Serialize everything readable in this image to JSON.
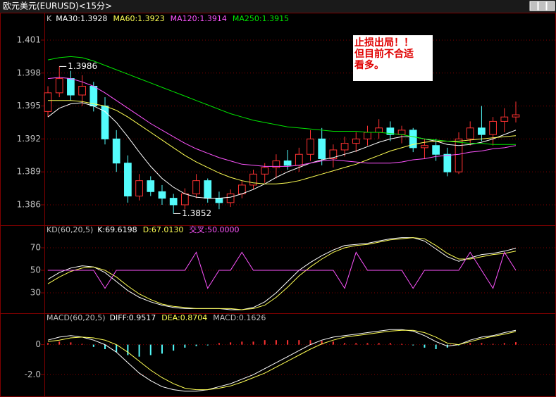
{
  "window_title": "欧元美元(EURUSD)<15分>",
  "chart_data": [
    {
      "type": "candlestick",
      "label": "K",
      "x": [
        0,
        1,
        2,
        3,
        4,
        5,
        6,
        7,
        8,
        9,
        10,
        11,
        12,
        13,
        14,
        15,
        16,
        17,
        18,
        19,
        20,
        21,
        22,
        23,
        24,
        25,
        26,
        27,
        28,
        29,
        30,
        31,
        32,
        33,
        34,
        35,
        36,
        37,
        38,
        39,
        40,
        41
      ],
      "xlim": [
        -0.31,
        44.52
      ],
      "open": [
        1.3945,
        1.3962,
        1.3975,
        1.396,
        1.3968,
        1.395,
        1.392,
        1.3898,
        1.3868,
        1.3882,
        1.3872,
        1.3866,
        1.386,
        1.387,
        1.3882,
        1.3866,
        1.3862,
        1.387,
        1.3878,
        1.3888,
        1.3894,
        1.39,
        1.3896,
        1.3906,
        1.392,
        1.3902,
        1.391,
        1.3916,
        1.392,
        1.3926,
        1.393,
        1.3924,
        1.3928,
        1.3912,
        1.3914,
        1.3906,
        1.389,
        1.392,
        1.393,
        1.3924,
        1.3936,
        1.394
      ],
      "high": [
        1.3968,
        1.3986,
        1.3982,
        1.3978,
        1.3972,
        1.3958,
        1.3928,
        1.3905,
        1.3888,
        1.3886,
        1.3878,
        1.387,
        1.3875,
        1.3888,
        1.3884,
        1.3872,
        1.3874,
        1.3882,
        1.3892,
        1.3898,
        1.3906,
        1.391,
        1.3912,
        1.3928,
        1.393,
        1.3915,
        1.3922,
        1.3926,
        1.3932,
        1.3938,
        1.3936,
        1.3932,
        1.393,
        1.392,
        1.392,
        1.3912,
        1.3926,
        1.3936,
        1.395,
        1.394,
        1.3948,
        1.3954
      ],
      "low": [
        1.394,
        1.3958,
        1.3955,
        1.395,
        1.3945,
        1.3915,
        1.389,
        1.3862,
        1.3864,
        1.3868,
        1.386,
        1.3852,
        1.3856,
        1.3866,
        1.3862,
        1.3856,
        1.3858,
        1.3866,
        1.3874,
        1.388,
        1.3884,
        1.3892,
        1.389,
        1.39,
        1.3896,
        1.3894,
        1.3904,
        1.3908,
        1.3914,
        1.392,
        1.3918,
        1.3916,
        1.3908,
        1.3902,
        1.39,
        1.3886,
        1.3888,
        1.3914,
        1.3918,
        1.3914,
        1.3926,
        1.3935
      ],
      "close": [
        1.3962,
        1.3975,
        1.396,
        1.3968,
        1.395,
        1.392,
        1.3898,
        1.3868,
        1.3882,
        1.3872,
        1.3866,
        1.386,
        1.387,
        1.3882,
        1.3866,
        1.3862,
        1.387,
        1.3878,
        1.3888,
        1.3894,
        1.39,
        1.3896,
        1.3906,
        1.392,
        1.3902,
        1.391,
        1.3916,
        1.392,
        1.3926,
        1.393,
        1.3924,
        1.3928,
        1.3912,
        1.3914,
        1.3906,
        1.389,
        1.392,
        1.393,
        1.3924,
        1.3936,
        1.394,
        1.3942
      ],
      "up_color": "#ff3232",
      "down_color": "#54fcfc",
      "series": [
        {
          "name": "MA30:1.3928",
          "color": "#ffffff",
          "values": [
            1.394,
            1.3948,
            1.3952,
            1.3953,
            1.395,
            1.3945,
            1.3935,
            1.3922,
            1.3908,
            1.3895,
            1.3884,
            1.3876,
            1.387,
            1.3867,
            1.3866,
            1.3866,
            1.3867,
            1.387,
            1.3874,
            1.3879,
            1.3885,
            1.389,
            1.3894,
            1.3898,
            1.3901,
            1.3903,
            1.3906,
            1.3909,
            1.3913,
            1.3917,
            1.392,
            1.3922,
            1.3922,
            1.392,
            1.3918,
            1.3915,
            1.3914,
            1.3915,
            1.3917,
            1.392,
            1.3924,
            1.3928
          ]
        },
        {
          "name": "MA60:1.3923",
          "color": "#ffff54",
          "values": [
            1.3955,
            1.3955,
            1.3955,
            1.3954,
            1.3952,
            1.395,
            1.3946,
            1.394,
            1.3933,
            1.3926,
            1.3919,
            1.3912,
            1.3905,
            1.3899,
            1.3894,
            1.3889,
            1.3885,
            1.3882,
            1.388,
            1.3879,
            1.3879,
            1.388,
            1.3882,
            1.3885,
            1.3888,
            1.3891,
            1.3894,
            1.3897,
            1.3901,
            1.3905,
            1.3909,
            1.3912,
            1.3915,
            1.3917,
            1.3918,
            1.3918,
            1.3918,
            1.3919,
            1.392,
            1.3921,
            1.3922,
            1.3923
          ]
        },
        {
          "name": "MA120:1.3914",
          "color": "#ff54ff",
          "values": [
            1.3975,
            1.3976,
            1.3975,
            1.3972,
            1.3968,
            1.3962,
            1.3955,
            1.3948,
            1.3941,
            1.3934,
            1.3928,
            1.3922,
            1.3916,
            1.3911,
            1.3907,
            1.3903,
            1.39,
            1.3897,
            1.3896,
            1.3895,
            1.3895,
            1.3895,
            1.3896,
            1.3898,
            1.39,
            1.3901,
            1.39,
            1.3899,
            1.3898,
            1.3898,
            1.3898,
            1.3899,
            1.3901,
            1.3902,
            1.3904,
            1.3905,
            1.3906,
            1.3908,
            1.3909,
            1.3911,
            1.3912,
            1.3914
          ]
        },
        {
          "name": "MA250:1.3915",
          "color": "#00e600",
          "values": [
            1.3992,
            1.3994,
            1.3995,
            1.3994,
            1.3991,
            1.3987,
            1.3983,
            1.3979,
            1.3975,
            1.3971,
            1.3967,
            1.3963,
            1.3959,
            1.3955,
            1.3951,
            1.3947,
            1.3943,
            1.394,
            1.3937,
            1.3935,
            1.3933,
            1.3931,
            1.393,
            1.3929,
            1.3928,
            1.3927,
            1.3927,
            1.3927,
            1.3926,
            1.3926,
            1.3925,
            1.3924,
            1.3922,
            1.392,
            1.3919,
            1.3918,
            1.3917,
            1.3916,
            1.3916,
            1.3915,
            1.3915,
            1.3915
          ]
        }
      ],
      "ylim": [
        1.38414,
        1.40337
      ],
      "yticks": [
        1.401,
        1.398,
        1.395,
        1.392,
        1.389,
        1.386
      ],
      "grid": true,
      "annotations": [
        {
          "text": "1.3986",
          "x": 1,
          "y": 1.3986
        },
        {
          "text": "1.3852",
          "x": 11,
          "y": 1.3852
        }
      ],
      "note": [
        "止损出局！！",
        "但目前不合适",
        "看多。"
      ]
    },
    {
      "type": "line",
      "label": "KD(60,20,5)",
      "x": [
        0,
        1,
        2,
        3,
        4,
        5,
        6,
        7,
        8,
        9,
        10,
        11,
        12,
        13,
        14,
        15,
        16,
        17,
        18,
        19,
        20,
        21,
        22,
        23,
        24,
        25,
        26,
        27,
        28,
        29,
        30,
        31,
        32,
        33,
        34,
        35,
        36,
        37,
        38,
        39,
        40,
        41
      ],
      "xlim": [
        -0.31,
        44.52
      ],
      "series": [
        {
          "name": "K:69.6198",
          "color": "#ffffff",
          "values": [
            42,
            48,
            52,
            54,
            53,
            48,
            40,
            32,
            26,
            22,
            19,
            17,
            16,
            16,
            16,
            16,
            15,
            15,
            17,
            22,
            30,
            40,
            50,
            57,
            63,
            68,
            72,
            73,
            74,
            76,
            78,
            79,
            79,
            76,
            69,
            62,
            58,
            61,
            64,
            65,
            67,
            69.6198
          ]
        },
        {
          "name": "D:67.0130",
          "color": "#ffff54",
          "values": [
            38,
            44,
            49,
            52,
            53,
            50,
            44,
            36,
            29,
            24,
            20,
            18,
            17,
            16,
            16,
            16,
            16,
            15,
            16,
            19,
            26,
            35,
            45,
            53,
            60,
            66,
            70,
            72,
            73,
            75,
            77,
            78,
            79,
            78,
            72,
            65,
            60,
            60,
            62,
            64,
            65,
            67.013
          ]
        },
        {
          "name": "交叉:50.0000",
          "color": "#ff54ff",
          "values": [
            50,
            50,
            50,
            50,
            50,
            34,
            50,
            50,
            50,
            50,
            50,
            50,
            50,
            66,
            34,
            50,
            50,
            66,
            50,
            50,
            50,
            50,
            50,
            50,
            50,
            50,
            34,
            66,
            50,
            50,
            50,
            50,
            34,
            50,
            50,
            50,
            50,
            66,
            50,
            34,
            66,
            50
          ]
        }
      ],
      "ylim": [
        11.9,
        90
      ],
      "yticks": [
        70,
        50,
        30
      ],
      "grid": true
    },
    {
      "type": "macd",
      "label": "MACD(60,20,5)",
      "x": [
        0,
        1,
        2,
        3,
        4,
        5,
        6,
        7,
        8,
        9,
        10,
        11,
        12,
        13,
        14,
        15,
        16,
        17,
        18,
        19,
        20,
        21,
        22,
        23,
        24,
        25,
        26,
        27,
        28,
        29,
        30,
        31,
        32,
        33,
        34,
        35,
        36,
        37,
        38,
        39,
        40,
        41
      ],
      "xlim": [
        -0.31,
        44.52
      ],
      "series": [
        {
          "name": "DIFF:0.9517",
          "color": "#ffffff",
          "values": [
            0.3,
            0.5,
            0.6,
            0.5,
            0.3,
            0,
            -0.5,
            -1.2,
            -1.9,
            -2.4,
            -2.8,
            -3.0,
            -3.1,
            -3.1,
            -3.0,
            -2.8,
            -2.6,
            -2.3,
            -2.0,
            -1.6,
            -1.2,
            -0.8,
            -0.4,
            0,
            0.3,
            0.5,
            0.6,
            0.7,
            0.8,
            0.9,
            1.0,
            1.0,
            0.9,
            0.6,
            0.2,
            -0.1,
            0,
            0.3,
            0.5,
            0.6,
            0.8,
            0.9517
          ]
        },
        {
          "name": "DEA:0.8704",
          "color": "#ffff54",
          "values": [
            0.2,
            0.3,
            0.45,
            0.5,
            0.45,
            0.3,
            0,
            -0.5,
            -1.1,
            -1.7,
            -2.2,
            -2.6,
            -2.9,
            -3.0,
            -3.0,
            -2.9,
            -2.75,
            -2.5,
            -2.2,
            -1.9,
            -1.5,
            -1.1,
            -0.7,
            -0.3,
            0.05,
            0.3,
            0.5,
            0.6,
            0.7,
            0.8,
            0.9,
            0.95,
            0.95,
            0.8,
            0.5,
            0.1,
            0,
            0.2,
            0.4,
            0.55,
            0.7,
            0.8704
          ]
        }
      ],
      "bars": {
        "name": "MACD:0.1626",
        "up_color": "#ff3232",
        "down_color": "#54fcfc",
        "values": [
          0.1,
          0.2,
          0.15,
          0.05,
          -0.15,
          -0.3,
          -0.5,
          -0.7,
          -0.8,
          -0.7,
          -0.6,
          -0.4,
          -0.2,
          -0.1,
          -0.05,
          0.1,
          0.15,
          0.2,
          0.2,
          0.3,
          0.3,
          0.3,
          0.3,
          0.3,
          0.25,
          0.2,
          0.1,
          0.1,
          0.1,
          0.1,
          0.1,
          0.05,
          -0.05,
          -0.2,
          -0.3,
          -0.2,
          -0.05,
          0.1,
          0.1,
          0.05,
          0.1,
          0.1626
        ]
      },
      "ylim": [
        -3.44,
        2.09
      ],
      "yticks": [
        0,
        {
          "value": -2,
          "label": "-2.0"
        }
      ],
      "grid": true
    }
  ]
}
